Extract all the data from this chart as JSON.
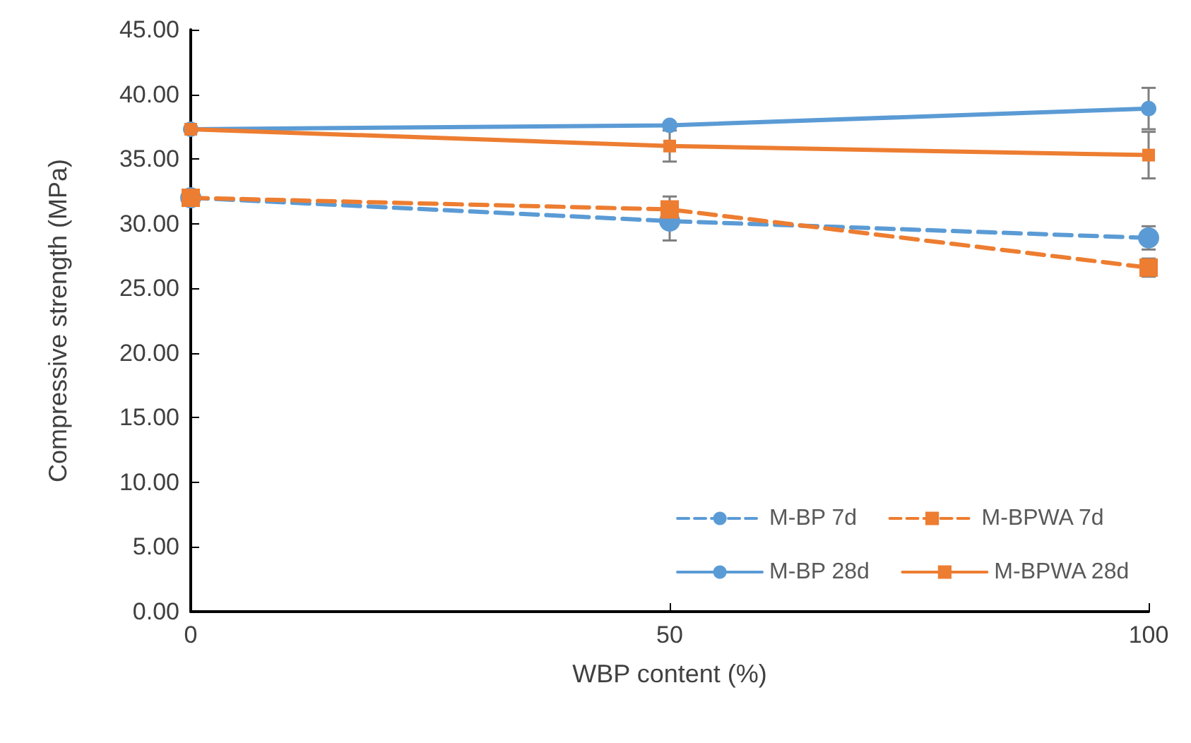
{
  "chart_data": {
    "type": "line",
    "xlabel": "WBP content (%)",
    "ylabel": "Compressive strength (MPa)",
    "x": [
      0,
      50,
      100
    ],
    "xlim": [
      0,
      100
    ],
    "xticks": [
      0,
      50,
      100
    ],
    "ylim": [
      0,
      45
    ],
    "yticks": [
      {
        "value": 0,
        "label": "0.00"
      },
      {
        "value": 5,
        "label": "5.00"
      },
      {
        "value": 10,
        "label": "10.00"
      },
      {
        "value": 15,
        "label": "15.00"
      },
      {
        "value": 20,
        "label": "20.00"
      },
      {
        "value": 25,
        "label": "25.00"
      },
      {
        "value": 30,
        "label": "30.00"
      },
      {
        "value": 35,
        "label": "35.00"
      },
      {
        "value": 40,
        "label": "40.00"
      },
      {
        "value": 45,
        "label": "45.00"
      }
    ],
    "grid": false,
    "legend": "bottom right",
    "series": [
      {
        "name": "M-BP 7d",
        "color": "#5b9bd5",
        "values": [
          32.0,
          30.2,
          28.9
        ],
        "errors": [
          null,
          1.5,
          0.9
        ],
        "marker": "circle",
        "line_style": "dashed"
      },
      {
        "name": "M-BPWA 7d",
        "color": "#ed7d31",
        "values": [
          32.0,
          31.1,
          26.6
        ],
        "errors": [
          null,
          1.0,
          0.7
        ],
        "marker": "square",
        "line_style": "dashed"
      },
      {
        "name": "M-BP 28d",
        "color": "#5b9bd5",
        "values": [
          37.3,
          37.6,
          38.9
        ],
        "errors": [
          null,
          null,
          1.6
        ],
        "marker": "circle",
        "line_style": "solid"
      },
      {
        "name": "M-BPWA 28d",
        "color": "#ed7d31",
        "values": [
          37.3,
          36.0,
          35.3
        ],
        "errors": [
          null,
          1.2,
          1.8
        ],
        "marker": "square",
        "line_style": "solid"
      }
    ]
  }
}
